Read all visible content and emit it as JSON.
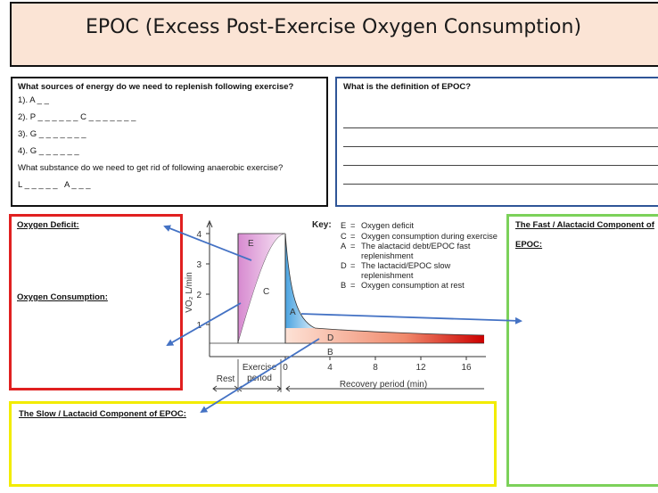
{
  "title": "EPOC (Excess Post-Exercise Oxygen Consumption)",
  "energy": {
    "question": "What sources of energy do we need to replenish following exercise?",
    "items": [
      "1). A _ _",
      "2). P _ _ _ _ _ _ C _ _ _ _ _ _ _",
      "3). G _ _ _ _ _ _ _",
      "4). G _ _ _ _ _ _"
    ],
    "question2": "What substance do we need to get rid of following anaerobic exercise?",
    "answer2": "L _ _ _ _ _   A _ _ _"
  },
  "definition": {
    "question": "What is the definition of EPOC?"
  },
  "deficit_box": {
    "heading1": "Oxygen Deficit:",
    "heading2": "Oxygen Consumption:"
  },
  "slow_box": {
    "heading": "The Slow / Lactacid Component of EPOC:"
  },
  "fast_box": {
    "heading": "The Fast / Alactacid Component of",
    "heading2": "EPOC:"
  },
  "chart_data": {
    "type": "area",
    "ylabel": "VO₂ L/min",
    "y_ticks": [
      "1",
      "2",
      "3",
      "4"
    ],
    "x_ticks": [
      "0",
      "4",
      "8",
      "12",
      "16"
    ],
    "xlabel": "Recovery period (min)",
    "period_labels": [
      "Rest",
      "Exercise period"
    ],
    "region_labels": [
      "E",
      "C",
      "A",
      "D",
      "B"
    ],
    "key_title": "Key:",
    "key": [
      {
        "letter": "E",
        "text": "Oxygen deficit"
      },
      {
        "letter": "C",
        "text": "Oxygen consumption during exercise"
      },
      {
        "letter": "A",
        "text": "The alactacid debt/EPOC fast replenishment"
      },
      {
        "letter": "D",
        "text": "The lactacid/EPOC slow replenishment"
      },
      {
        "letter": "B",
        "text": "Oxygen consumption at rest"
      }
    ],
    "colors": {
      "deficit": "#d78ad0",
      "fast": "#4aa3e0",
      "slow_start": "#fde2d6",
      "slow_end": "#cc0000"
    }
  }
}
